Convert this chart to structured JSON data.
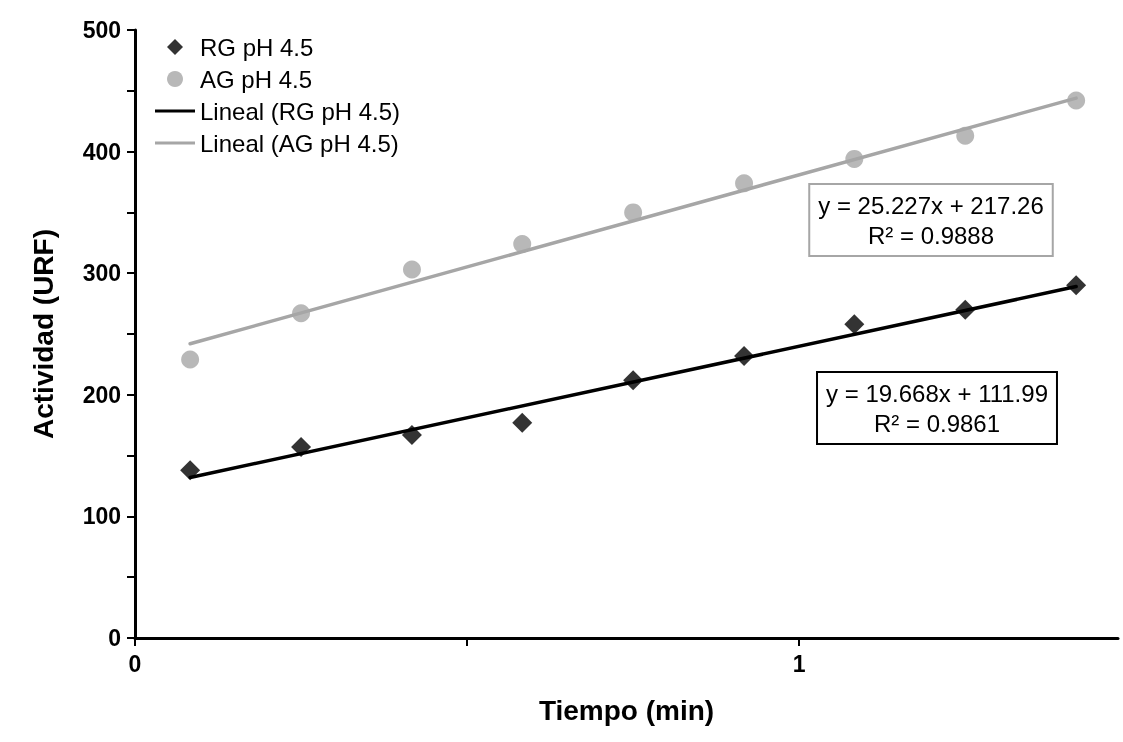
{
  "chart_data": {
    "type": "scatter",
    "xlabel": "Tiempo (min)",
    "ylabel": "Actividad (URF)",
    "xlim": [
      0,
      1.48
    ],
    "xticks": [
      0,
      {
        "value": 0.5,
        "label": null
      },
      1
    ],
    "ylim": [
      0,
      500
    ],
    "yticks": [
      0,
      {
        "value": 50,
        "label": null
      },
      100,
      {
        "value": 150,
        "label": null
      },
      200,
      {
        "value": 250,
        "label": null
      },
      300,
      {
        "value": 350,
        "label": null
      },
      400,
      {
        "value": 450,
        "label": null
      },
      500
    ],
    "grid": false,
    "legend": "top left",
    "series": [
      {
        "name": "RG pH 4.5",
        "marker": "diamond",
        "color": "#000000",
        "x": [
          0.083,
          0.25,
          0.417,
          0.583,
          0.75,
          0.917,
          1.083,
          1.25,
          1.417
        ],
        "values": [
          138,
          157,
          167,
          177,
          212,
          232,
          258,
          270,
          290
        ]
      },
      {
        "name": "AG pH 4.5",
        "marker": "circle",
        "color": "#a6a6a6",
        "x": [
          0.083,
          0.25,
          0.417,
          0.583,
          0.75,
          0.917,
          1.083,
          1.25,
          1.417
        ],
        "values": [
          229,
          267,
          303,
          324,
          350,
          374,
          394,
          413,
          442
        ]
      },
      {
        "name": "Lineal (RG pH 4.5)",
        "type": "line",
        "marker": "none",
        "line_style": "solid",
        "color": "#000000",
        "x": [
          0.083,
          1.417
        ],
        "values": [
          132,
          289
        ]
      },
      {
        "name": "Lineal (AG pH 4.5)",
        "type": "line",
        "marker": "none",
        "line_style": "solid",
        "color": "#a6a6a6",
        "x": [
          0.083,
          1.417
        ],
        "values": [
          242,
          444
        ]
      }
    ],
    "annotations": [
      "y = 25.227x + 217.26\nR² = 0.9888",
      "y = 19.668x + 111.99\nR² = 0.9861"
    ]
  }
}
